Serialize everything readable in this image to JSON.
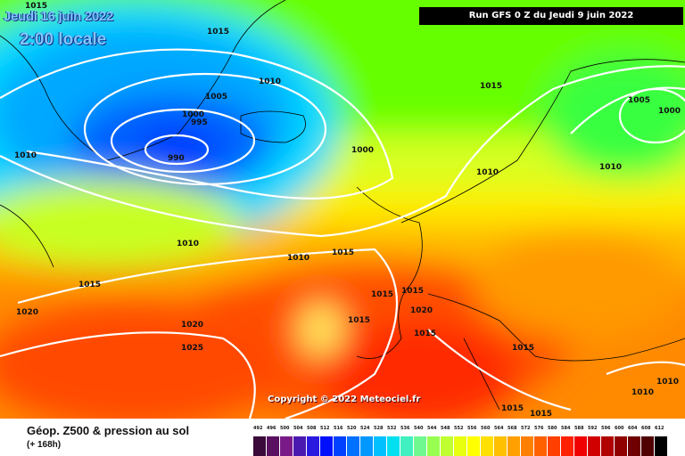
{
  "header": {
    "run_label": "Run GFS 0 Z du Jeudi 9 juin 2022",
    "valid_date": "Jeudi 16 juin 2022",
    "valid_time": "2:00 locale"
  },
  "map": {
    "copyright": "Copyright © 2022 Meteociel.fr",
    "isobars": [
      {
        "label": "1015",
        "id": "iso-1"
      },
      {
        "label": "1015",
        "id": "iso-2"
      },
      {
        "label": "1010",
        "id": "iso-3"
      },
      {
        "label": "1005",
        "id": "iso-4"
      },
      {
        "label": "1000",
        "id": "iso-5"
      },
      {
        "label": "995",
        "id": "iso-6"
      },
      {
        "label": "990",
        "id": "iso-7"
      },
      {
        "label": "1010",
        "id": "iso-8"
      },
      {
        "label": "1000",
        "id": "iso-9"
      },
      {
        "label": "1015",
        "id": "iso-10"
      },
      {
        "label": "1005",
        "id": "iso-11"
      },
      {
        "label": "1000",
        "id": "iso-12"
      },
      {
        "label": "1010",
        "id": "iso-13"
      },
      {
        "label": "1010",
        "id": "iso-14"
      },
      {
        "label": "1010",
        "id": "iso-15"
      },
      {
        "label": "1010",
        "id": "iso-16"
      },
      {
        "label": "1015",
        "id": "iso-17"
      },
      {
        "label": "1015",
        "id": "iso-18"
      },
      {
        "label": "1020",
        "id": "iso-19"
      },
      {
        "label": "1015",
        "id": "iso-20"
      },
      {
        "label": "1015",
        "id": "iso-21"
      },
      {
        "label": "1015",
        "id": "iso-22"
      },
      {
        "label": "1020",
        "id": "iso-23"
      },
      {
        "label": "1015",
        "id": "iso-24"
      },
      {
        "label": "1020",
        "id": "iso-25"
      },
      {
        "label": "1025",
        "id": "iso-26"
      },
      {
        "label": "1015",
        "id": "iso-27"
      },
      {
        "label": "1010",
        "id": "iso-28"
      },
      {
        "label": "1010",
        "id": "iso-29"
      },
      {
        "label": "1015",
        "id": "iso-30"
      },
      {
        "label": "1015",
        "id": "iso-31"
      }
    ]
  },
  "legend": {
    "title": "Géop. Z500 & pression au sol",
    "subtitle": "(+ 168h)",
    "scale_values": [
      "492",
      "496",
      "500",
      "504",
      "508",
      "512",
      "516",
      "520",
      "524",
      "528",
      "532",
      "536",
      "540",
      "544",
      "548",
      "552",
      "556",
      "560",
      "564",
      "568",
      "572",
      "576",
      "580",
      "584",
      "588",
      "592",
      "596",
      "600",
      "604",
      "608",
      "612"
    ],
    "scale_colors": [
      "#3a0a3a",
      "#5a1060",
      "#7a1a88",
      "#4a1ab0",
      "#2a1ae0",
      "#0010ff",
      "#0040ff",
      "#0070ff",
      "#0098ff",
      "#00c0ff",
      "#00e0f0",
      "#40f0c0",
      "#70f890",
      "#98ff50",
      "#c0ff30",
      "#e8ff10",
      "#ffff00",
      "#ffe000",
      "#ffc000",
      "#ffa000",
      "#ff8000",
      "#ff6000",
      "#ff4000",
      "#ff2000",
      "#f00000",
      "#d00000",
      "#b00000",
      "#900000",
      "#700000",
      "#500000",
      "#000000"
    ]
  }
}
